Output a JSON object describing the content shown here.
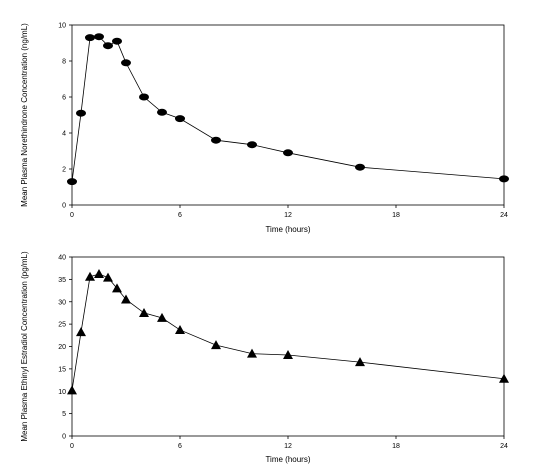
{
  "chart_data": [
    {
      "type": "line",
      "marker": "circle",
      "xlabel": "Time (hours)",
      "ylabel": "Mean Plasma Norethindrone Concentration (ng/mL)",
      "xlim": [
        0,
        24
      ],
      "ylim": [
        0,
        10
      ],
      "xticks": [
        "0",
        "6",
        "12",
        "18",
        "24"
      ],
      "yticks": [
        "0",
        "2",
        "4",
        "6",
        "8",
        "10"
      ],
      "grid": false,
      "x": [
        0,
        0.5,
        1,
        1.5,
        2,
        2.5,
        3,
        4,
        5,
        6,
        8,
        10,
        12,
        16,
        24
      ],
      "values": [
        1.3,
        5.1,
        9.3,
        9.35,
        8.85,
        9.1,
        7.9,
        6.0,
        5.15,
        4.8,
        3.6,
        3.35,
        2.9,
        2.1,
        1.45
      ]
    },
    {
      "type": "line",
      "marker": "triangle",
      "xlabel": "Time (hours)",
      "ylabel": "Mean Plasma Ethinyl Estradiol Concentration (pg/mL)",
      "xlim": [
        0,
        24
      ],
      "ylim": [
        0,
        40
      ],
      "xticks": [
        "0",
        "6",
        "12",
        "18",
        "24"
      ],
      "yticks": [
        "0",
        "5",
        "10",
        "15",
        "20",
        "25",
        "30",
        "35",
        "40"
      ],
      "grid": false,
      "x": [
        0,
        0.5,
        1,
        1.5,
        2,
        2.5,
        3,
        4,
        5,
        6,
        8,
        10,
        12,
        16,
        24
      ],
      "values": [
        10.2,
        23.2,
        35.6,
        36.2,
        35.4,
        33.0,
        30.5,
        27.5,
        26.4,
        23.7,
        20.3,
        18.4,
        18.1,
        16.5,
        12.8
      ]
    }
  ]
}
